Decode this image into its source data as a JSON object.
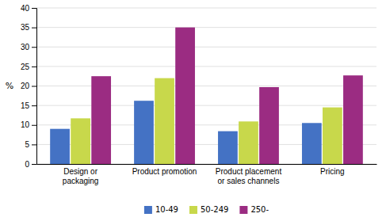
{
  "chart_data": {
    "type": "bar",
    "ylabel": "%",
    "categories": [
      "Design or\npackaging",
      "Product promotion",
      "Product placement\nor sales channels",
      "Pricing"
    ],
    "series": [
      {
        "name": "10-49",
        "color": "#4472c4",
        "values": [
          9.0,
          16.2,
          8.4,
          10.5
        ]
      },
      {
        "name": "50-249",
        "color": "#c8d84b",
        "values": [
          11.7,
          22.0,
          10.9,
          14.5
        ]
      },
      {
        "name": "250-",
        "color": "#9b2c82",
        "values": [
          22.5,
          35.0,
          19.7,
          22.7
        ]
      }
    ],
    "ylim": [
      0,
      40
    ],
    "yticks": [
      0,
      5,
      10,
      15,
      20,
      25,
      30,
      35,
      40
    ],
    "grid": true,
    "legend": "bottom"
  }
}
